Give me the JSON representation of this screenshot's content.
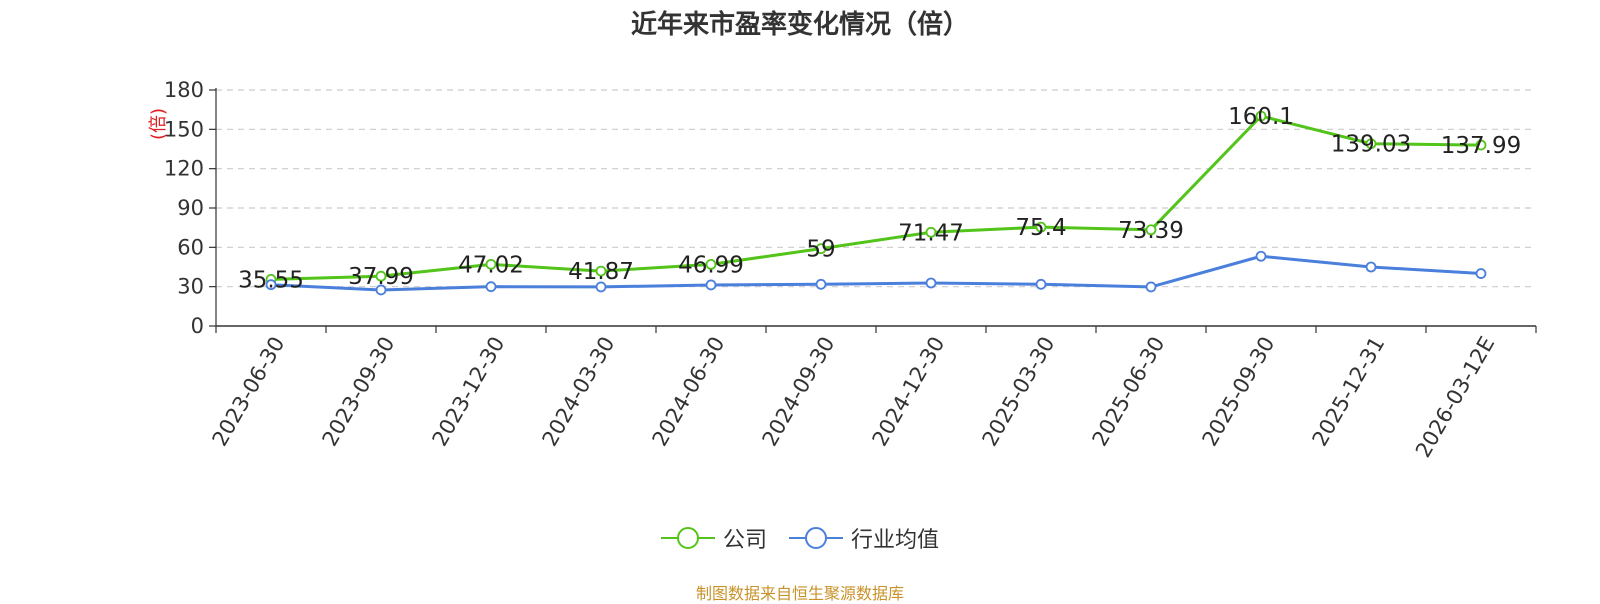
{
  "title": "近年来市盈率变化情况（倍）",
  "source_note": "制图数据来自恒生聚源数据库",
  "chart_data": {
    "type": "line",
    "title": "近年来市盈率变化情况（倍）",
    "ylabel": "(倍)",
    "ylabel_color": "#e02020",
    "ylim": [
      0,
      180
    ],
    "yticks": [
      0,
      30,
      60,
      90,
      120,
      150,
      180
    ],
    "grid": true,
    "legend_position": "bottom",
    "categories": [
      "2023-06-30",
      "2023-09-30",
      "2023-12-30",
      "2024-03-30",
      "2024-06-30",
      "2024-09-30",
      "2024-12-30",
      "2025-03-30",
      "2025-06-30",
      "2025-09-30",
      "2025-12-31",
      "2026-03-12E"
    ],
    "series": [
      {
        "name": "公司",
        "color": "#52c41a",
        "values": [
          35.55,
          37.99,
          47.02,
          41.87,
          46.99,
          59,
          71.47,
          75.4,
          73.39,
          160.1,
          139.03,
          137.99
        ],
        "labels": [
          "35.55",
          "37.99",
          "47.02",
          "41.87",
          "46.99",
          "59",
          "71.47",
          "75.4",
          "73.39",
          "160.1",
          "139.03",
          "137.99"
        ]
      },
      {
        "name": "行业均值",
        "color": "#4a7fdc",
        "values": [
          31.5,
          27.5,
          30,
          29.8,
          31.3,
          31.8,
          32.8,
          31.8,
          29.8,
          53.2,
          45,
          40
        ]
      }
    ]
  }
}
